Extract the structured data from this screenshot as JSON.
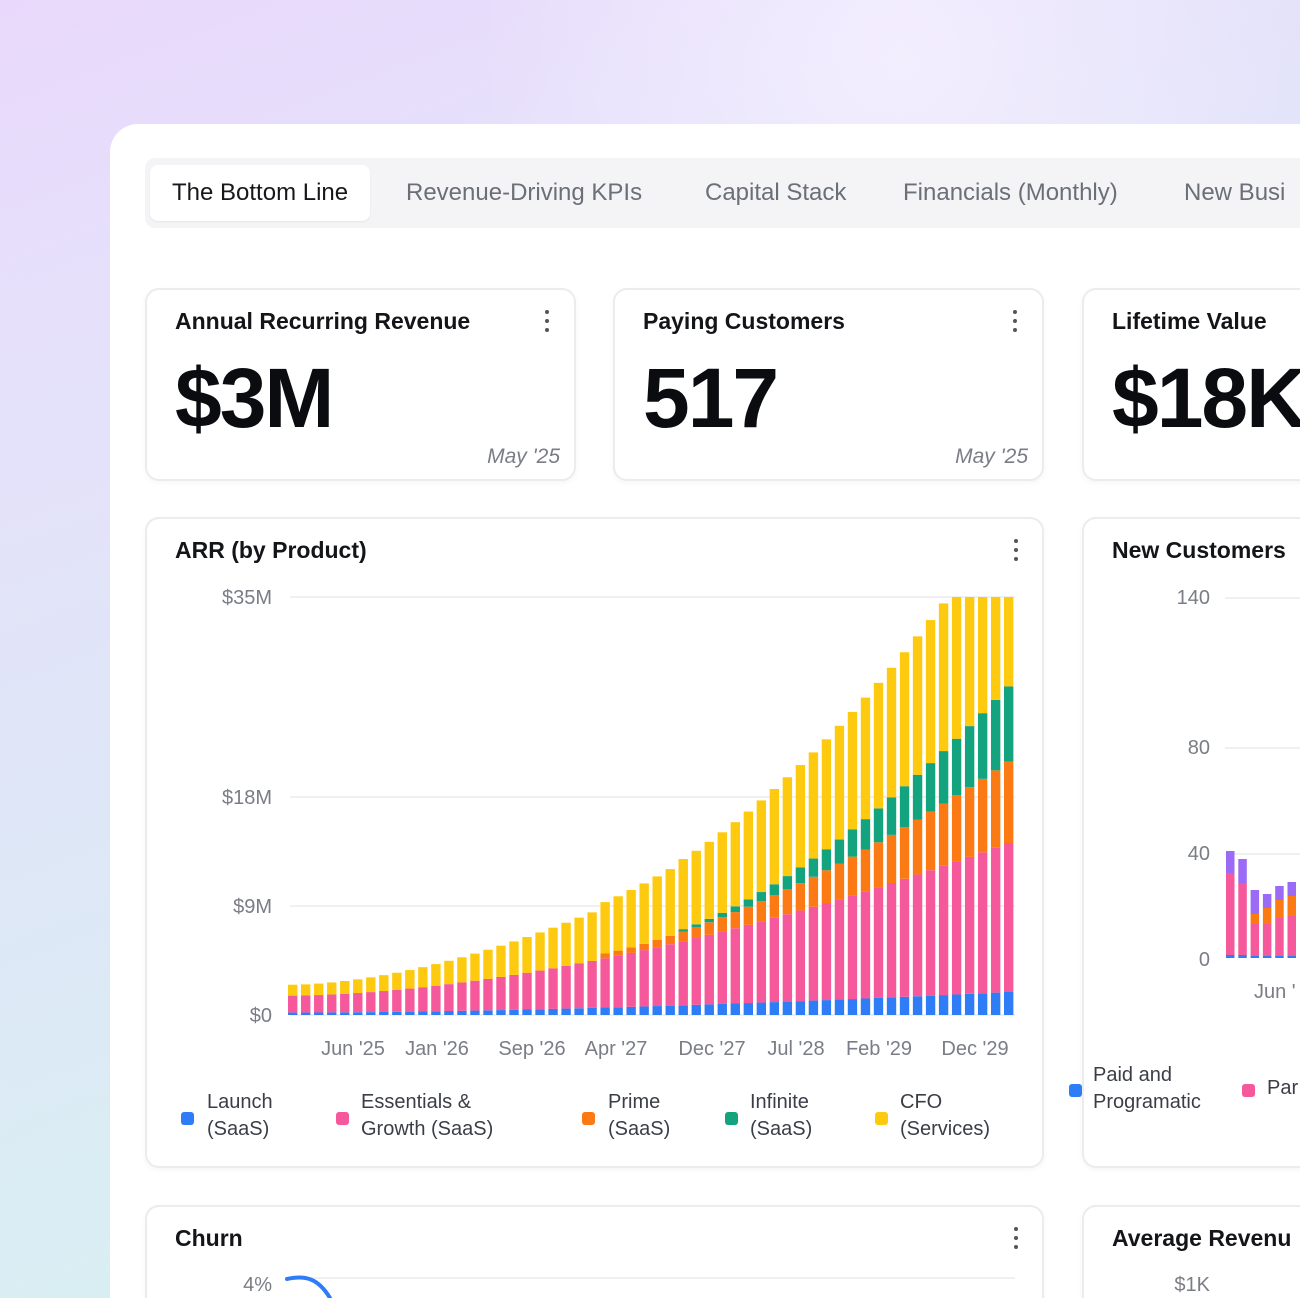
{
  "tabs": [
    {
      "label": "The Bottom Line",
      "active": true
    },
    {
      "label": "Revenue-Driving KPIs",
      "active": false
    },
    {
      "label": "Capital Stack",
      "active": false
    },
    {
      "label": "Financials (Monthly)",
      "active": false
    },
    {
      "label": "New Busi",
      "active": false
    }
  ],
  "kpis": [
    {
      "title": "Annual Recurring Revenue",
      "value": "$3M",
      "date": "May '25"
    },
    {
      "title": "Paying Customers",
      "value": "517",
      "date": "May '25"
    },
    {
      "title": "Lifetime Value",
      "value": "$18K",
      "date": ""
    }
  ],
  "arr_card": {
    "title": "ARR (by Product)",
    "legend": [
      {
        "line1": "Launch",
        "line2": "(SaaS)",
        "color": "#2f7df6"
      },
      {
        "line1": "Essentials &",
        "line2": "Growth (SaaS)",
        "color": "#f5589b"
      },
      {
        "line1": "Prime",
        "line2": "(SaaS)",
        "color": "#fb7a14"
      },
      {
        "line1": "Infinite",
        "line2": "(SaaS)",
        "color": "#14a37f"
      },
      {
        "line1": "CFO",
        "line2": "(Services)",
        "color": "#fdca0f"
      }
    ]
  },
  "new_customers_card": {
    "title": "New Customers",
    "y_ticks": [
      "140",
      "80",
      "40",
      "0"
    ],
    "x_tick": "Jun '",
    "legend": [
      {
        "line1": "Paid and",
        "line2": "Programatic",
        "color": "#2f7df6"
      },
      {
        "line1": "Par",
        "line2": "",
        "color": "#f5589b"
      }
    ]
  },
  "churn_card": {
    "title": "Churn",
    "y_tick": "4%"
  },
  "avg_revenue_card": {
    "title": "Average Revenu",
    "y_tick": "$1K"
  },
  "chart_data": [
    {
      "type": "bar",
      "stacked": true,
      "title": "ARR (by Product)",
      "y_ticks": [
        "$0",
        "$9M",
        "$18M",
        "$35M"
      ],
      "y_tick_values": [
        0,
        9,
        18,
        35
      ],
      "y_unit": "$M",
      "x_tick_labels": [
        "Jun '25",
        "Jan '26",
        "Sep '26",
        "Apr '27",
        "Dec '27",
        "Jul '28",
        "Feb '29",
        "Dec '29"
      ],
      "categories_first": "Jun '25",
      "categories_last": "Dec '29",
      "bar_count": 56,
      "series": [
        {
          "name": "Launch (SaaS)",
          "color": "#2f7df6",
          "start": 0.2,
          "end": 1.9,
          "onset": 0
        },
        {
          "name": "Essentials & Growth (SaaS)",
          "color": "#f5589b",
          "start": 1.4,
          "end": 12.3,
          "onset": 0
        },
        {
          "name": "Prime (SaaS)",
          "color": "#fb7a14",
          "start": 0.4,
          "end": 6.8,
          "onset": 24
        },
        {
          "name": "Infinite (SaaS)",
          "color": "#14a37f",
          "start": 0.2,
          "end": 6.4,
          "onset": 30
        },
        {
          "name": "CFO (Services)",
          "color": "#fdca0f",
          "start": 0.9,
          "end": 14.6,
          "onset": 0
        }
      ]
    }
  ]
}
